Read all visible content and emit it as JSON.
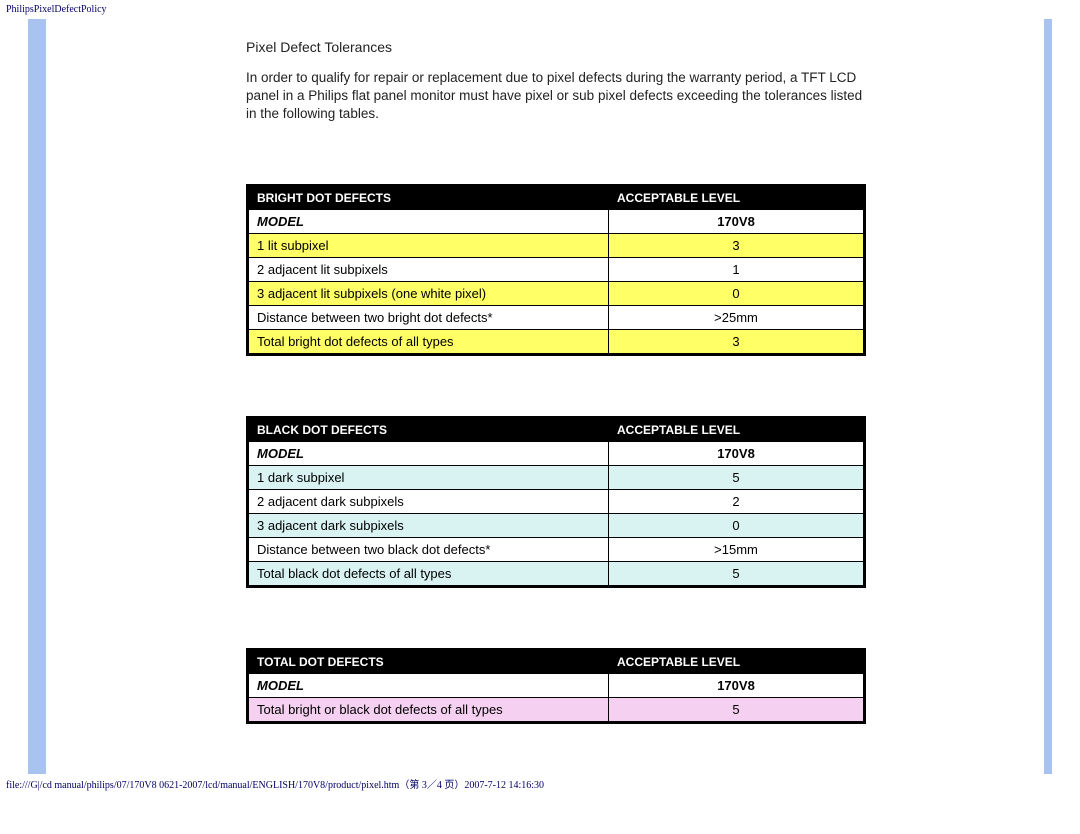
{
  "page_header": "PhilipsPixelDefectPolicy",
  "heading": "Pixel Defect Tolerances",
  "body_text": "In order to qualify for repair or replacement due to pixel defects during the warranty period, a TFT LCD panel in a Philips flat panel monitor must have pixel or sub pixel defects exceeding the tolerances listed in the following tables.",
  "footer": "file:///G|/cd manual/philips/07/170V8 0621-2007/lcd/manual/ENGLISH/170V8/product/pixel.htm（第 3／4 页）2007-7-12 14:16:30",
  "colors": {
    "left_bar": "#a8c3f0",
    "right_bar": "#a8c3f0",
    "header_black": "#000000",
    "header_text": "#ffffff",
    "yellow": "#ffff66",
    "white": "#ffffff",
    "cyan": "#d9f2f2",
    "pink": "#f5d0f0",
    "border": "#000000"
  },
  "tables": [
    {
      "header": {
        "left": "BRIGHT DOT DEFECTS",
        "right": "ACCEPTABLE LEVEL"
      },
      "model_row": {
        "left": "MODEL",
        "right": "170V8"
      },
      "rows": [
        {
          "left": "1 lit subpixel",
          "right": "3",
          "style": "yellow"
        },
        {
          "left": "2 adjacent lit subpixels",
          "right": "1",
          "style": "white"
        },
        {
          "left": "3 adjacent lit subpixels (one white pixel)",
          "right": "0",
          "style": "yellow"
        },
        {
          "left": "Distance between two bright dot defects*",
          "right": ">25mm",
          "style": "white"
        },
        {
          "left": "Total bright dot defects of all types",
          "right": "3",
          "style": "yellow"
        }
      ]
    },
    {
      "header": {
        "left": "BLACK DOT DEFECTS",
        "right": "ACCEPTABLE LEVEL"
      },
      "model_row": {
        "left": "MODEL",
        "right": "170V8"
      },
      "rows": [
        {
          "left": "1 dark subpixel",
          "right": "5",
          "style": "cyan"
        },
        {
          "left": "2 adjacent dark subpixels",
          "right": "2",
          "style": "white"
        },
        {
          "left": "3 adjacent dark subpixels",
          "right": "0",
          "style": "cyan"
        },
        {
          "left": "Distance between two black dot defects*",
          "right": ">15mm",
          "style": "white"
        },
        {
          "left": "Total black dot defects of all types",
          "right": "5",
          "style": "cyan"
        }
      ]
    },
    {
      "header": {
        "left": "TOTAL DOT DEFECTS",
        "right": "ACCEPTABLE LEVEL"
      },
      "model_row": {
        "left": "MODEL",
        "right": "170V8"
      },
      "rows": [
        {
          "left": "Total bright or black dot defects of all types",
          "right": "5",
          "style": "pink"
        }
      ]
    }
  ]
}
